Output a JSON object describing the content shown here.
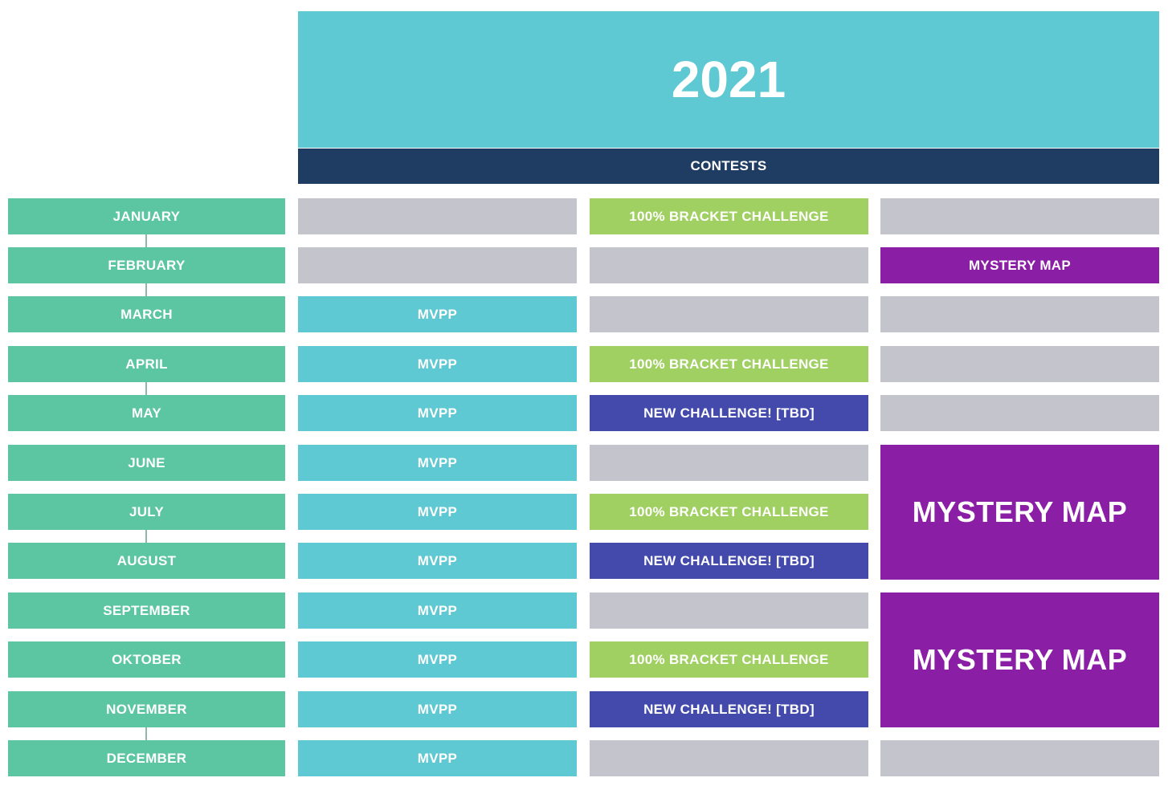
{
  "header": {
    "year": "2021",
    "contests_label": "CONTESTS"
  },
  "months": [
    "JANUARY",
    "FEBRUARY",
    "MARCH",
    "APRIL",
    "MAY",
    "JUNE",
    "JULY",
    "AUGUST",
    "SEPTEMBER",
    "OKTOBER",
    "NOVEMBER",
    "DECEMBER"
  ],
  "labels": {
    "mvpp": "MVPP",
    "bracket": "100% BRACKET CHALLENGE",
    "new_challenge": "NEW CHALLENGE! [TBD]",
    "mystery_map": "MYSTERY MAP"
  },
  "colors": {
    "year_banner": "#5ec9d2",
    "contests_bar": "#1f3c63",
    "month": "#5cc5a2",
    "mvpp": "#5ec9d2",
    "empty": "#c3c4cc",
    "bracket": "#a0cf62",
    "new_challenge": "#434aac",
    "mystery_map": "#8a1fa6"
  }
}
